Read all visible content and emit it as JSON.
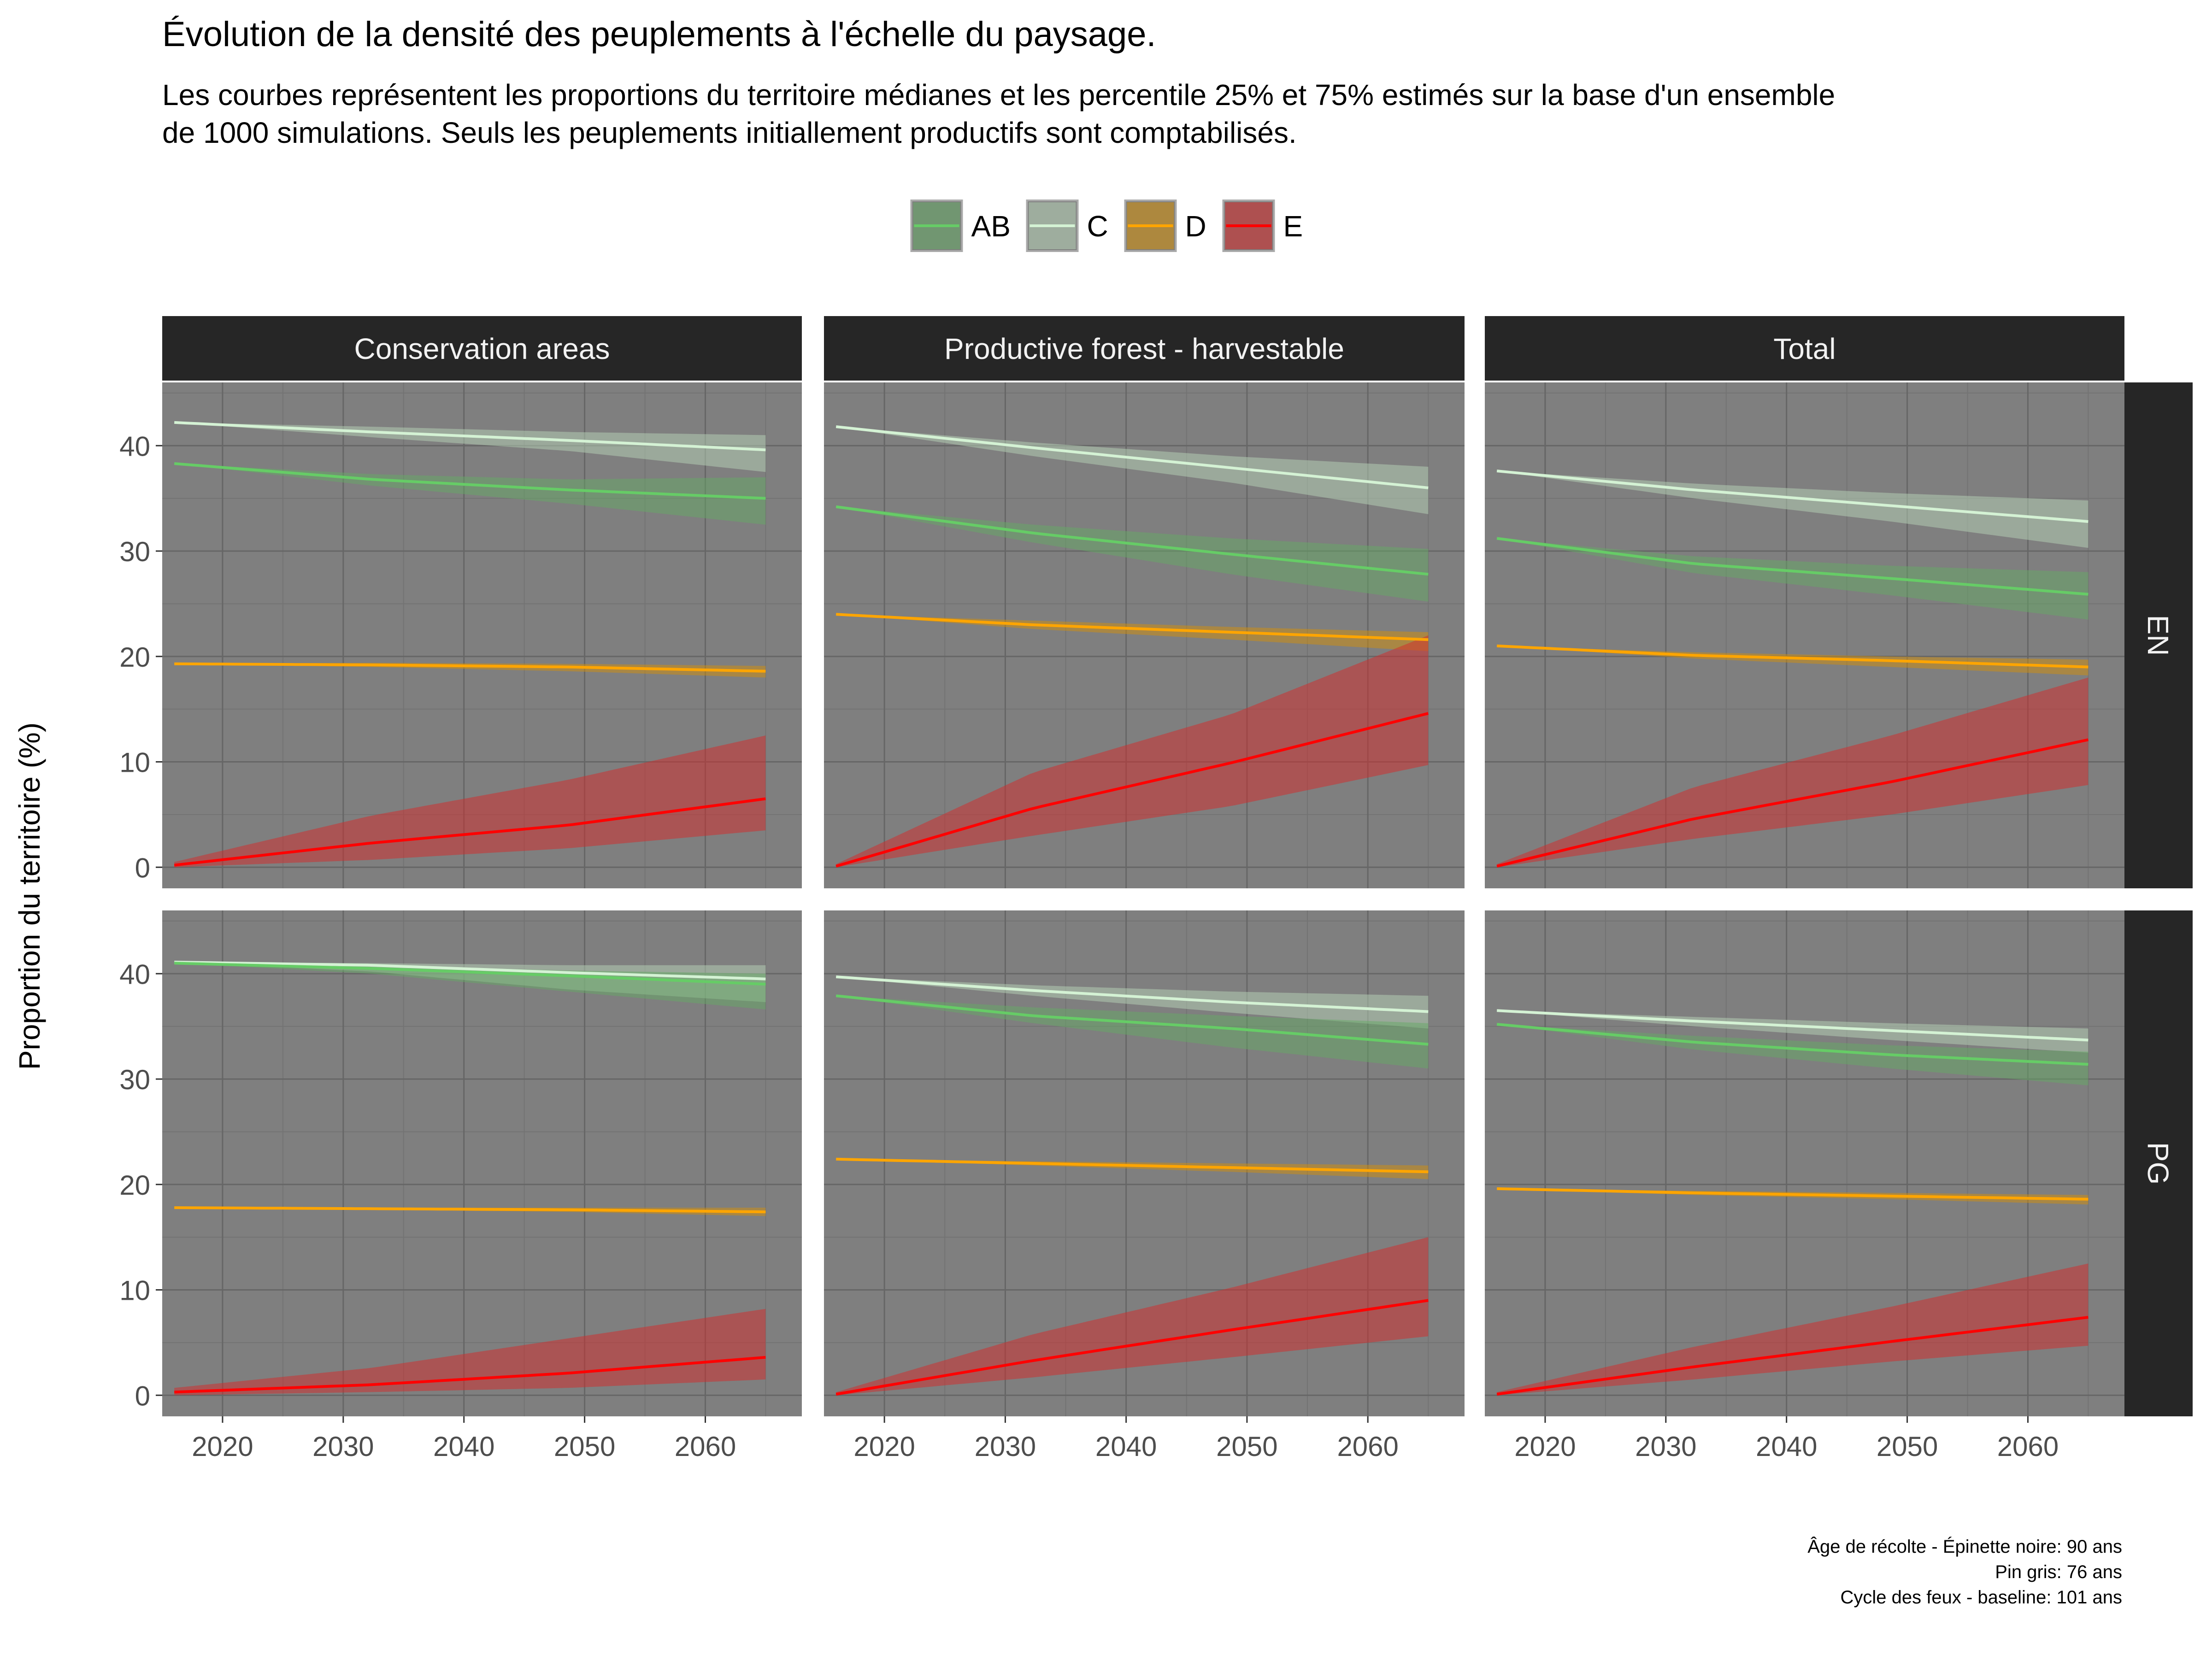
{
  "chart_data": {
    "type": "line",
    "title": "Évolution de la densité des peuplements à l'échelle du paysage.",
    "subtitle_lines": [
      "Les courbes représentent les proportions du territoire médianes et les percentile 25% et 75% estimés sur la base d'un ensemble",
      "de 1000 simulations. Seuls les peuplements initiallement productifs sont comptabilisés."
    ],
    "ylabel": "Proportion du territoire (%)",
    "xlabel": "",
    "xlim": [
      2015,
      2068
    ],
    "ylim": [
      -2,
      46
    ],
    "x_ticks": [
      2020,
      2030,
      2040,
      2050,
      2060
    ],
    "y_ticks": [
      0,
      10,
      20,
      30,
      40
    ],
    "x_start": 2016,
    "x_end": 2065,
    "grid": true,
    "legend_position": "top",
    "columns": [
      "Conservation areas",
      "Productive forest - harvestable",
      "Total"
    ],
    "rows": [
      "EN",
      "PG"
    ],
    "legend": [
      {
        "key": "AB",
        "label": "AB",
        "line_color": "#66cc66",
        "fill_color": "#66aa66"
      },
      {
        "key": "C",
        "label": "C",
        "line_color": "#d4f2d4",
        "fill_color": "#b8d4b8"
      },
      {
        "key": "D",
        "label": "D",
        "line_color": "#ffa500",
        "fill_color": "#d4900a"
      },
      {
        "key": "E",
        "label": "E",
        "line_color": "#ff0000",
        "fill_color": "#d62a2a"
      }
    ],
    "panels": [
      {
        "row": "EN",
        "col": "Conservation areas",
        "series": [
          {
            "key": "C",
            "median": [
              42.2,
              41.3,
              40.5,
              39.6
            ],
            "p25": [
              42.2,
              40.8,
              39.5,
              37.5
            ],
            "p75": [
              42.2,
              41.8,
              41.3,
              41.0
            ]
          },
          {
            "key": "AB",
            "median": [
              38.3,
              36.8,
              35.8,
              35.0
            ],
            "p25": [
              38.3,
              36.2,
              34.5,
              32.5
            ],
            "p75": [
              38.3,
              37.3,
              36.8,
              37.0
            ]
          },
          {
            "key": "D",
            "median": [
              19.3,
              19.2,
              19.0,
              18.6
            ],
            "p25": [
              19.3,
              19.0,
              18.6,
              18.0
            ],
            "p75": [
              19.3,
              19.4,
              19.3,
              19.1
            ]
          },
          {
            "key": "E",
            "median": [
              0.2,
              2.3,
              4.0,
              6.5
            ],
            "p25": [
              0.0,
              0.7,
              1.8,
              3.5
            ],
            "p75": [
              0.5,
              4.9,
              8.3,
              12.5
            ]
          }
        ]
      },
      {
        "row": "EN",
        "col": "Productive forest - harvestable",
        "series": [
          {
            "key": "C",
            "median": [
              41.8,
              39.8,
              37.9,
              36.0
            ],
            "p25": [
              41.8,
              39.0,
              36.5,
              33.5
            ],
            "p75": [
              41.8,
              40.3,
              39.0,
              38.0
            ]
          },
          {
            "key": "AB",
            "median": [
              34.2,
              31.7,
              29.7,
              27.8
            ],
            "p25": [
              34.2,
              30.8,
              27.8,
              25.2
            ],
            "p75": [
              34.2,
              32.5,
              31.2,
              30.2
            ]
          },
          {
            "key": "D",
            "median": [
              24.0,
              23.0,
              22.3,
              21.6
            ],
            "p25": [
              24.0,
              22.6,
              21.6,
              20.5
            ],
            "p75": [
              24.0,
              23.4,
              22.8,
              22.3
            ]
          },
          {
            "key": "E",
            "median": [
              0.1,
              5.6,
              9.9,
              14.6
            ],
            "p25": [
              0.0,
              3.0,
              5.8,
              9.7
            ],
            "p75": [
              0.3,
              9.0,
              14.5,
              22.0
            ]
          }
        ]
      },
      {
        "row": "EN",
        "col": "Total",
        "series": [
          {
            "key": "C",
            "median": [
              37.6,
              35.8,
              34.3,
              32.8
            ],
            "p25": [
              37.6,
              35.0,
              32.8,
              30.3
            ],
            "p75": [
              37.6,
              36.4,
              35.5,
              34.8
            ]
          },
          {
            "key": "AB",
            "median": [
              31.2,
              28.8,
              27.4,
              25.9
            ],
            "p25": [
              31.2,
              27.9,
              25.8,
              23.5
            ],
            "p75": [
              31.2,
              29.5,
              28.6,
              28.0
            ]
          },
          {
            "key": "D",
            "median": [
              21.0,
              20.1,
              19.6,
              19.0
            ],
            "p25": [
              21.0,
              19.8,
              19.0,
              18.2
            ],
            "p75": [
              21.0,
              20.4,
              20.0,
              19.7
            ]
          },
          {
            "key": "E",
            "median": [
              0.1,
              4.6,
              8.1,
              12.1
            ],
            "p25": [
              0.0,
              2.7,
              5.0,
              7.8
            ],
            "p75": [
              0.3,
              7.6,
              12.5,
              18.0
            ]
          }
        ]
      },
      {
        "row": "PG",
        "col": "Conservation areas",
        "series": [
          {
            "key": "C",
            "median": [
              41.1,
              40.8,
              40.1,
              39.5
            ],
            "p25": [
              41.1,
              40.2,
              38.5,
              37.3
            ],
            "p75": [
              41.1,
              41.0,
              40.8,
              40.8
            ]
          },
          {
            "key": "AB",
            "median": [
              41.0,
              40.5,
              39.8,
              39.0
            ],
            "p25": [
              41.0,
              40.0,
              38.3,
              36.6
            ],
            "p75": [
              41.0,
              40.8,
              40.3,
              40.0
            ]
          },
          {
            "key": "D",
            "median": [
              17.8,
              17.7,
              17.6,
              17.4
            ],
            "p25": [
              17.8,
              17.6,
              17.4,
              17.0
            ],
            "p75": [
              17.8,
              17.8,
              17.8,
              17.8
            ]
          },
          {
            "key": "E",
            "median": [
              0.3,
              1.0,
              2.1,
              3.6
            ],
            "p25": [
              0.0,
              0.3,
              0.7,
              1.5
            ],
            "p75": [
              0.7,
              2.6,
              5.4,
              8.2
            ]
          }
        ]
      },
      {
        "row": "PG",
        "col": "Productive forest - harvestable",
        "series": [
          {
            "key": "C",
            "median": [
              39.7,
              38.4,
              37.3,
              36.4
            ],
            "p25": [
              39.7,
              37.9,
              36.3,
              34.8
            ],
            "p75": [
              39.7,
              38.9,
              38.3,
              37.9
            ]
          },
          {
            "key": "AB",
            "median": [
              37.9,
              36.0,
              34.8,
              33.3
            ],
            "p25": [
              37.9,
              35.3,
              33.0,
              31.0
            ],
            "p75": [
              37.9,
              36.8,
              36.0,
              35.3
            ]
          },
          {
            "key": "D",
            "median": [
              22.4,
              22.0,
              21.6,
              21.2
            ],
            "p25": [
              22.4,
              21.8,
              21.2,
              20.5
            ],
            "p75": [
              22.4,
              22.2,
              22.0,
              21.8
            ]
          },
          {
            "key": "E",
            "median": [
              0.1,
              3.3,
              6.2,
              9.0
            ],
            "p25": [
              0.0,
              1.7,
              3.6,
              5.6
            ],
            "p75": [
              0.3,
              5.8,
              10.2,
              15.0
            ]
          }
        ]
      },
      {
        "row": "PG",
        "col": "Total",
        "series": [
          {
            "key": "C",
            "median": [
              36.5,
              35.5,
              34.6,
              33.7
            ],
            "p25": [
              36.5,
              35.0,
              33.7,
              32.5
            ],
            "p75": [
              36.5,
              35.9,
              35.3,
              34.8
            ]
          },
          {
            "key": "AB",
            "median": [
              35.2,
              33.5,
              32.3,
              31.4
            ],
            "p25": [
              35.2,
              32.8,
              31.0,
              29.4
            ],
            "p75": [
              35.2,
              34.1,
              33.2,
              32.6
            ]
          },
          {
            "key": "D",
            "median": [
              19.6,
              19.2,
              18.9,
              18.6
            ],
            "p25": [
              19.6,
              19.0,
              18.6,
              18.1
            ],
            "p75": [
              19.6,
              19.4,
              19.2,
              19.0
            ]
          },
          {
            "key": "E",
            "median": [
              0.1,
              2.7,
              5.1,
              7.4
            ],
            "p25": [
              0.0,
              1.5,
              3.2,
              4.7
            ],
            "p75": [
              0.3,
              4.6,
              8.4,
              12.5
            ]
          }
        ]
      }
    ],
    "caption_lines": [
      "Âge de récolte - Épinette noire: 90 ans",
      "Pin gris: 76 ans",
      "Cycle des feux - baseline: 101 ans"
    ]
  }
}
